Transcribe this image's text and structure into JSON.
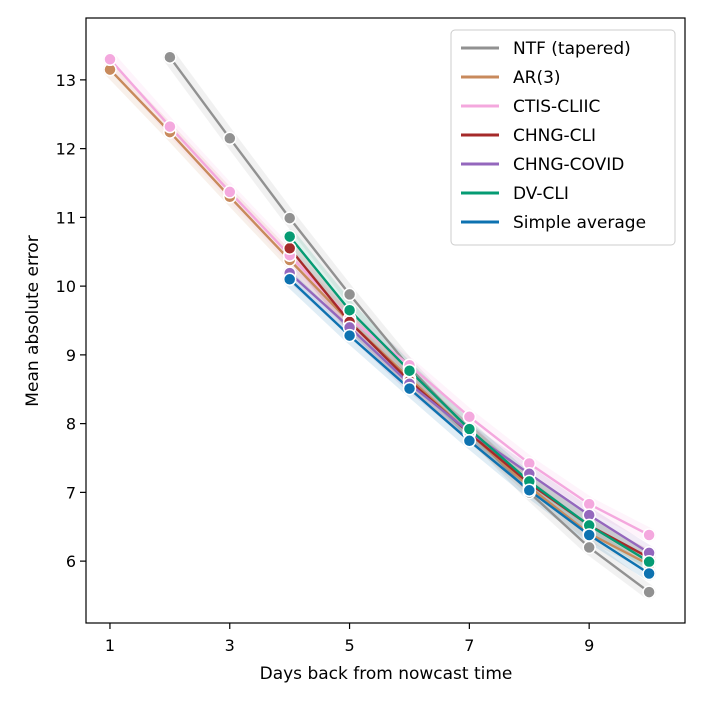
{
  "chart_data": {
    "type": "line",
    "xlabel": "Days back from nowcast time",
    "ylabel": "Mean absolute error",
    "xlim": [
      0.6,
      10.6
    ],
    "ylim": [
      5.1,
      13.9
    ],
    "xticks": [
      1,
      3,
      5,
      7,
      9
    ],
    "yticks": [
      6,
      7,
      8,
      9,
      10,
      11,
      12,
      13
    ],
    "grid": false,
    "legend": "top-right",
    "series": [
      {
        "name": "NTF (tapered)",
        "color": "#919191",
        "x": [
          2,
          3,
          4,
          5,
          6,
          7,
          8,
          9,
          10
        ],
        "values": [
          13.33,
          12.15,
          10.99,
          9.88,
          8.82,
          7.9,
          7.0,
          6.2,
          5.55
        ]
      },
      {
        "name": "AR(3)",
        "color": "#c88a5c",
        "x": [
          1,
          2,
          3,
          4,
          5,
          6,
          7,
          8,
          9,
          10
        ],
        "values": [
          13.15,
          12.24,
          11.3,
          10.38,
          9.48,
          8.66,
          7.86,
          7.08,
          6.4,
          5.95
        ]
      },
      {
        "name": "CTIS-CLIIC",
        "color": "#f4a8de",
        "x": [
          1,
          2,
          3,
          4,
          5,
          6,
          7,
          8,
          9,
          10
        ],
        "values": [
          13.3,
          12.32,
          11.37,
          10.45,
          9.53,
          8.85,
          8.1,
          7.42,
          6.83,
          6.38
        ]
      },
      {
        "name": "CHNG-CLI",
        "color": "#a52a2a",
        "x": [
          4,
          5,
          6,
          7,
          8,
          9,
          10
        ],
        "values": [
          10.55,
          9.48,
          8.62,
          7.86,
          7.13,
          6.52,
          6.05
        ]
      },
      {
        "name": "CHNG-COVID",
        "color": "#9467bd",
        "x": [
          4,
          5,
          6,
          7,
          8,
          9,
          10
        ],
        "values": [
          10.19,
          9.4,
          8.58,
          7.88,
          7.27,
          6.67,
          6.12
        ]
      },
      {
        "name": "DV-CLI",
        "color": "#059b73",
        "x": [
          4,
          5,
          6,
          7,
          8,
          9,
          10
        ],
        "values": [
          10.72,
          9.65,
          8.77,
          7.92,
          7.16,
          6.52,
          5.99
        ]
      },
      {
        "name": "Simple average",
        "color": "#0d72b0",
        "x": [
          4,
          5,
          6,
          7,
          8,
          9,
          10
        ],
        "values": [
          10.1,
          9.28,
          8.51,
          7.75,
          7.03,
          6.38,
          5.82
        ]
      }
    ]
  }
}
